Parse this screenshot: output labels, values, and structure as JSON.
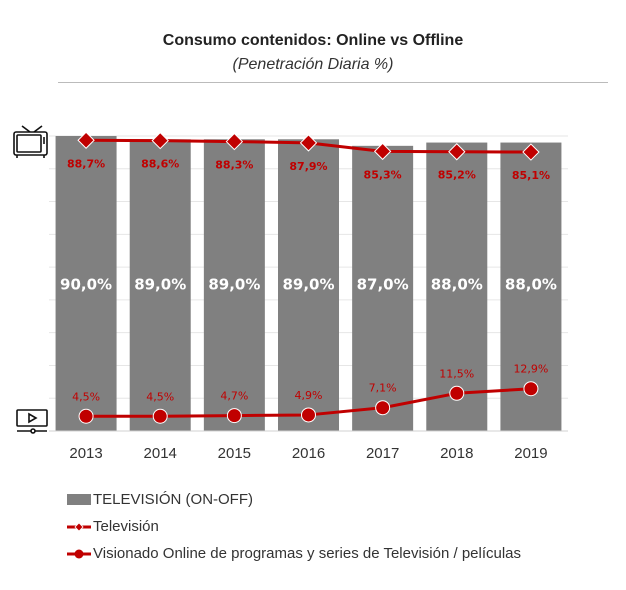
{
  "chart_data": {
    "type": "bar",
    "title": "Consumo contenidos: Online vs Offline",
    "subtitle": "(Penetración Diaria %)",
    "categories": [
      "2013",
      "2014",
      "2015",
      "2016",
      "2017",
      "2018",
      "2019"
    ],
    "ylim": [
      0,
      90
    ],
    "grid": true,
    "legend_position": "bottom",
    "series": [
      {
        "name": "TELEVISIÓN (ON-OFF)",
        "type": "bar",
        "color": "#808080",
        "values": [
          90.0,
          89.0,
          89.0,
          89.0,
          87.0,
          88.0,
          88.0
        ],
        "labels": [
          "90,0%",
          "89,0%",
          "89,0%",
          "89,0%",
          "87,0%",
          "88,0%",
          "88,0%"
        ]
      },
      {
        "name": "Televisión",
        "type": "line",
        "marker": "diamond",
        "color": "#c00000",
        "values": [
          88.7,
          88.6,
          88.3,
          87.9,
          85.3,
          85.2,
          85.1
        ],
        "labels": [
          "88,7%",
          "88,6%",
          "88,3%",
          "87,9%",
          "85,3%",
          "85,2%",
          "85,1%"
        ]
      },
      {
        "name": "Visionado Online de programas y series de Televisión / películas",
        "type": "line",
        "marker": "circle",
        "color": "#c00000",
        "values": [
          4.5,
          4.5,
          4.7,
          4.9,
          7.1,
          11.5,
          12.9
        ],
        "labels": [
          "4,5%",
          "4,5%",
          "4,7%",
          "4,9%",
          "7,1%",
          "11,5%",
          "12,9%"
        ]
      }
    ],
    "icons": [
      "tv-icon",
      "video-player-icon"
    ]
  }
}
